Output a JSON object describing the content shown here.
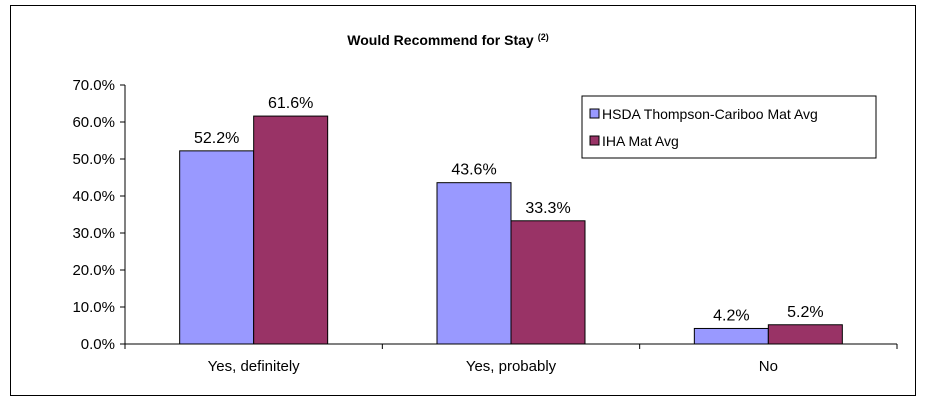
{
  "chart_data": {
    "type": "bar",
    "title": "Would Recommend for Stay",
    "title_superscript": "(2)",
    "categories": [
      "Yes, definitely",
      "Yes, probably",
      "No"
    ],
    "series": [
      {
        "name": "HSDA Thompson-Cariboo Mat Avg",
        "color": "#9999ff",
        "values": [
          52.2,
          43.6,
          4.2
        ],
        "labels": [
          "52.2%",
          "43.6%",
          "4.2%"
        ]
      },
      {
        "name": "IHA Mat Avg",
        "color": "#993366",
        "values": [
          61.6,
          33.3,
          5.2
        ],
        "labels": [
          "61.6%",
          "33.3%",
          "5.2%"
        ]
      }
    ],
    "ylim": [
      0,
      70
    ],
    "yticks": [
      0,
      10,
      20,
      30,
      40,
      50,
      60,
      70
    ],
    "ytick_labels": [
      "0.0%",
      "10.0%",
      "20.0%",
      "30.0%",
      "40.0%",
      "50.0%",
      "60.0%",
      "70.0%"
    ],
    "grid": false,
    "legend_position": "top-right"
  }
}
